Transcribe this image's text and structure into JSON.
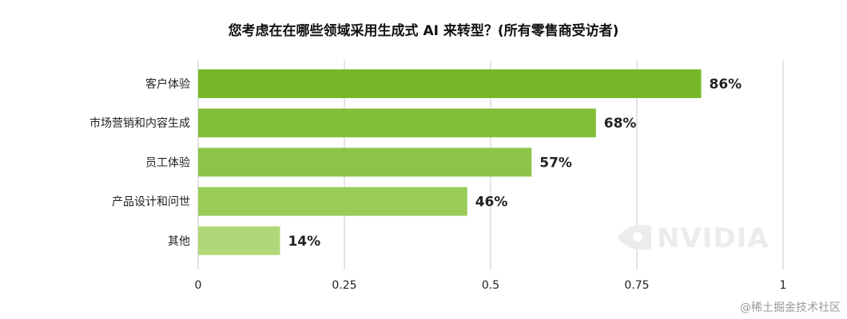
{
  "chart_data": {
    "type": "bar",
    "orientation": "horizontal",
    "title": "您考虑在在哪些领域采用生成式 AI 来转型？(所有零售商受访者)",
    "categories": [
      "客户体验",
      "市场营销和内容生成",
      "员工体验",
      "产品设计和问世",
      "其他"
    ],
    "values": [
      0.86,
      0.68,
      0.57,
      0.46,
      0.14
    ],
    "value_labels": [
      "86%",
      "68%",
      "57%",
      "46%",
      "14%"
    ],
    "bar_colors": [
      "#76b82a",
      "#80be38",
      "#8bc447",
      "#99cb57",
      "#b0d878"
    ],
    "xlim": [
      0,
      1
    ],
    "xticks": [
      0,
      0.25,
      0.5,
      0.75,
      1
    ],
    "xtick_labels": [
      "0",
      "0.25",
      "0.5",
      "0.75",
      "1"
    ],
    "grid": true,
    "legend": "none"
  },
  "watermark": {
    "brand": "NVIDIA",
    "site": "@稀土掘金技术社区"
  },
  "colors": {
    "grid": "#c8c8c8",
    "text": "#222222"
  }
}
